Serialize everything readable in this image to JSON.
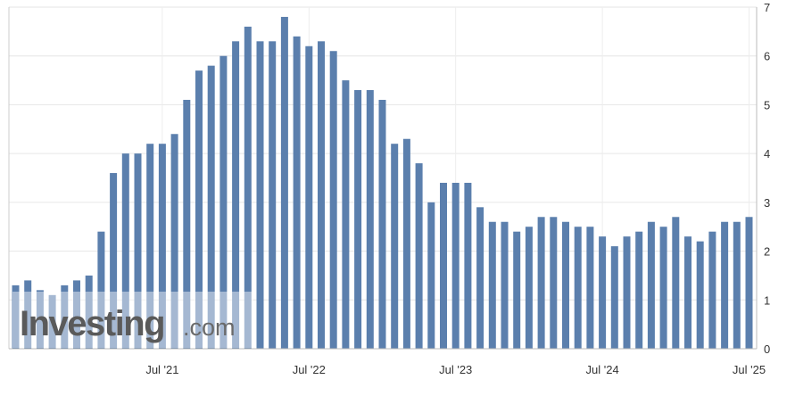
{
  "chart_data": {
    "type": "bar",
    "title": "",
    "xlabel": "",
    "ylabel": "",
    "ylim": [
      0,
      7
    ],
    "y_ticks": [
      "0",
      "1",
      "2",
      "3",
      "4",
      "5",
      "6",
      "7"
    ],
    "x_tick_labels": [
      {
        "label": "Jul '21",
        "index": 12
      },
      {
        "label": "Jul '22",
        "index": 24
      },
      {
        "label": "Jul '23",
        "index": 36
      },
      {
        "label": "Jul '24",
        "index": 48
      },
      {
        "label": "Jul '25",
        "index": 60
      }
    ],
    "grid": true,
    "y_axis_position": "right",
    "bar_color": "#5b7fad",
    "values": [
      1.3,
      1.4,
      1.2,
      1.1,
      1.3,
      1.4,
      1.5,
      2.4,
      3.6,
      4.0,
      4.0,
      4.2,
      4.2,
      4.4,
      5.1,
      5.7,
      5.8,
      6.0,
      6.3,
      6.6,
      6.3,
      6.3,
      6.8,
      6.4,
      6.2,
      6.3,
      6.1,
      5.5,
      5.3,
      5.3,
      5.1,
      4.2,
      4.3,
      3.8,
      3.0,
      3.4,
      3.4,
      3.4,
      2.9,
      2.6,
      2.6,
      2.4,
      2.5,
      2.7,
      2.7,
      2.6,
      2.5,
      2.5,
      2.3,
      2.1,
      2.3,
      2.4,
      2.6,
      2.5,
      2.7,
      2.3,
      2.2,
      2.4,
      2.6,
      2.6,
      2.7
    ]
  },
  "watermark": {
    "brand": "Investing",
    "suffix": ".com"
  }
}
